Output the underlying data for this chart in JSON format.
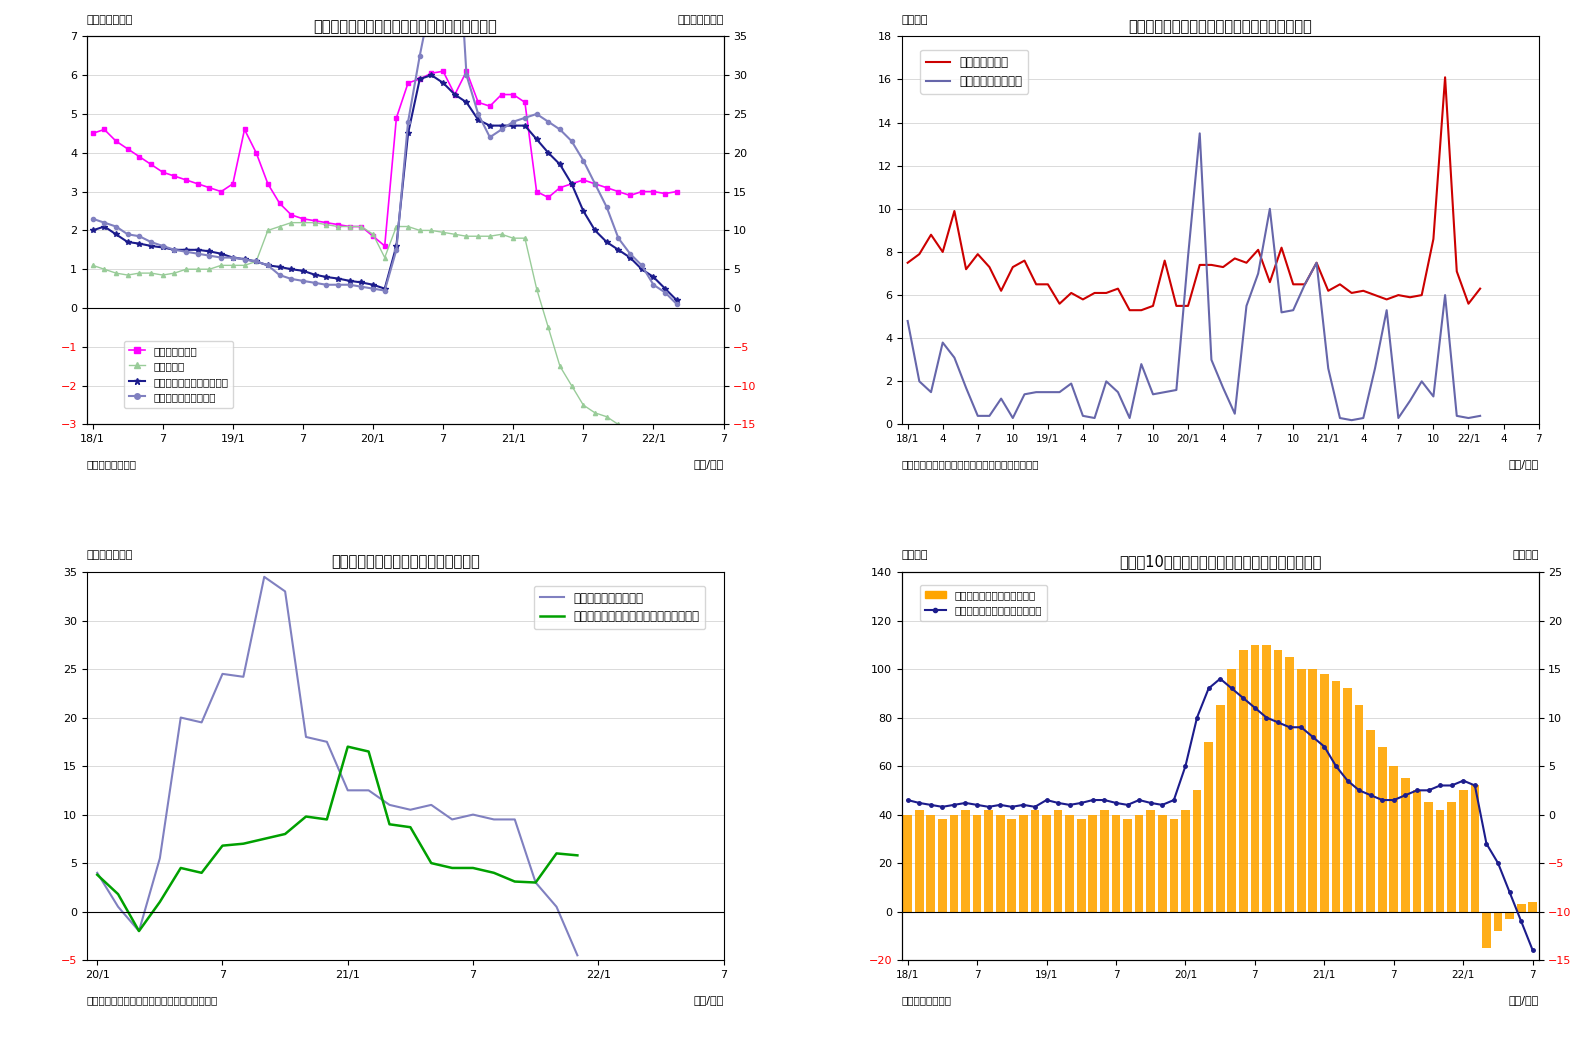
{
  "fig7": {
    "title": "（図表７）　マネタリーベースと内訳（平残）",
    "ylabel_left": "（前年比、％）",
    "ylabel_right": "（前年比、％）",
    "source": "（資料）日本銀行",
    "xlabel": "（年/月）",
    "ylim_left": [
      -3,
      7
    ],
    "ylim_right": [
      -15,
      35
    ],
    "yticks_left": [
      -3,
      -2,
      -1,
      0,
      1,
      2,
      3,
      4,
      5,
      6,
      7
    ],
    "yticks_right": [
      -15,
      -10,
      -5,
      0,
      5,
      10,
      15,
      20,
      25,
      30,
      35
    ],
    "xtick_labels": [
      "18/1",
      "7",
      "19/1",
      "7",
      "20/1",
      "7",
      "21/1",
      "7",
      "22/1",
      "7"
    ],
    "xtick_pos": [
      0,
      6,
      12,
      18,
      24,
      30,
      36,
      42,
      48,
      54
    ],
    "legend_labels": [
      "日銀券発行残高",
      "貨幣流通高",
      "マネタリーベース（右軸）",
      "日銀当座預金（右軸）"
    ],
    "series": {
      "nikkei_bills": [
        4.5,
        4.6,
        4.3,
        4.1,
        3.9,
        3.7,
        3.5,
        3.4,
        3.3,
        3.2,
        3.1,
        3.0,
        3.2,
        4.6,
        4.0,
        3.2,
        2.7,
        2.4,
        2.3,
        2.25,
        2.2,
        2.15,
        2.1,
        2.1,
        1.85,
        1.6,
        4.9,
        5.8,
        5.9,
        6.05,
        6.1,
        5.5,
        6.1,
        5.3,
        5.2,
        5.5,
        5.5,
        5.3,
        3.0,
        2.85,
        3.1,
        3.2,
        3.3,
        3.2,
        3.1,
        3.0,
        2.9,
        3.0,
        3.0,
        2.95,
        3.0
      ],
      "currency": [
        1.1,
        1.0,
        0.9,
        0.85,
        0.9,
        0.9,
        0.85,
        0.9,
        1.0,
        1.0,
        1.0,
        1.1,
        1.1,
        1.1,
        1.2,
        2.0,
        2.1,
        2.2,
        2.2,
        2.2,
        2.15,
        2.1,
        2.1,
        2.1,
        1.9,
        1.3,
        2.1,
        2.1,
        2.0,
        2.0,
        1.95,
        1.9,
        1.85,
        1.85,
        1.85,
        1.9,
        1.8,
        1.8,
        0.5,
        -0.5,
        -1.5,
        -2.0,
        -2.5,
        -2.7,
        -2.8,
        -3.0,
        -3.1,
        -3.15,
        -3.2,
        -3.2,
        -3.2
      ],
      "monetary_base_right": [
        10,
        10.5,
        9.5,
        8.5,
        8.3,
        8.0,
        7.8,
        7.5,
        7.5,
        7.5,
        7.3,
        7.0,
        6.5,
        6.3,
        6.0,
        5.5,
        5.3,
        5.0,
        4.8,
        4.3,
        4.0,
        3.8,
        3.5,
        3.3,
        3.0,
        2.5,
        8.0,
        22.5,
        29.5,
        30.0,
        29.0,
        27.5,
        26.5,
        24.25,
        23.5,
        23.5,
        23.5,
        23.5,
        21.75,
        20.0,
        18.5,
        16.0,
        12.5,
        10.0,
        8.5,
        7.5,
        6.5,
        5.0,
        4.0,
        2.5,
        1.0
      ],
      "boj_deposits_right": [
        11.5,
        11.0,
        10.5,
        9.5,
        9.25,
        8.5,
        8.0,
        7.5,
        7.25,
        7.0,
        6.75,
        6.5,
        6.5,
        6.25,
        6.0,
        5.5,
        4.25,
        3.75,
        3.5,
        3.25,
        3.0,
        3.0,
        3.0,
        2.75,
        2.5,
        2.25,
        7.5,
        24.0,
        32.5,
        40.0,
        47.5,
        55.0,
        30.0,
        25.0,
        22.0,
        23.0,
        24.0,
        24.5,
        25.0,
        24.0,
        23.0,
        21.5,
        19.0,
        16.0,
        13.0,
        9.0,
        7.0,
        5.5,
        3.0,
        2.0,
        0.5
      ]
    }
  },
  "fig8": {
    "title": "（図表８）日銀の国債買入れ額（月次フロー）",
    "ylabel_left": "（兆円）",
    "source": "（資料）日銀データよりニッセイ基礎研究所作成",
    "xlabel": "（年/月）",
    "ylim": [
      0,
      18
    ],
    "yticks": [
      0,
      2,
      4,
      6,
      8,
      10,
      12,
      14,
      16,
      18
    ],
    "xtick_labels": [
      "18/1",
      "4",
      "7",
      "10",
      "19/1",
      "4",
      "7",
      "10",
      "20/1",
      "4",
      "7",
      "10",
      "21/1",
      "4",
      "7",
      "10",
      "22/1",
      "4",
      "7"
    ],
    "xtick_pos": [
      0,
      3,
      6,
      9,
      12,
      15,
      18,
      21,
      24,
      27,
      30,
      33,
      36,
      39,
      42,
      45,
      48,
      51,
      54
    ],
    "legend_labels": [
      "長期国債買入額",
      "国庫短期証券買入額"
    ],
    "series": {
      "long_term": [
        7.5,
        7.9,
        8.8,
        8.0,
        9.9,
        7.2,
        7.9,
        7.3,
        6.2,
        7.3,
        7.6,
        6.5,
        6.5,
        5.6,
        6.1,
        5.8,
        6.1,
        6.1,
        6.3,
        5.3,
        5.3,
        5.5,
        7.6,
        5.5,
        5.5,
        7.4,
        7.4,
        7.3,
        7.7,
        7.5,
        8.1,
        6.6,
        8.2,
        6.5,
        6.5,
        7.5,
        6.2,
        6.5,
        6.1,
        6.2,
        6.0,
        5.8,
        6.0,
        5.9,
        6.0,
        8.6,
        16.1,
        7.1,
        5.6,
        6.3
      ],
      "short_term": [
        4.8,
        2.0,
        1.5,
        3.8,
        3.1,
        1.7,
        0.4,
        0.4,
        1.2,
        0.3,
        1.4,
        1.5,
        1.5,
        1.5,
        1.9,
        0.4,
        0.3,
        2.0,
        1.5,
        0.3,
        2.8,
        1.4,
        1.5,
        1.6,
        7.8,
        13.5,
        3.0,
        1.7,
        0.5,
        5.5,
        7.0,
        10.0,
        5.2,
        5.3,
        6.5,
        7.5,
        2.6,
        0.3,
        0.2,
        0.3,
        2.6,
        5.3,
        0.3,
        1.1,
        2.0,
        1.3,
        6.0,
        0.4,
        0.3,
        0.4
      ]
    }
  },
  "fig9": {
    "title": "（図表９）日銀当座預金残高の伸び率",
    "ylabel_left": "（前年比：％）",
    "source": "（資料）日本銀行よりニッセイ基礎研究所作成",
    "xlabel": "（年/月）",
    "ylim": [
      -5,
      35
    ],
    "yticks": [
      -5,
      0,
      5,
      10,
      15,
      20,
      25,
      30,
      35
    ],
    "xtick_labels": [
      "20/1",
      "7",
      "21/1",
      "7",
      "22/1",
      "7"
    ],
    "xtick_pos": [
      0,
      6,
      12,
      18,
      24,
      30
    ],
    "legend_labels": [
      "日銀当座預金（末残）",
      "日銀当座預金（除くコロナオペ・末残）"
    ],
    "series": {
      "end_balance": [
        4.0,
        0.5,
        -2.0,
        5.5,
        20.0,
        19.5,
        24.5,
        24.2,
        34.5,
        33.0,
        18.0,
        17.5,
        12.5,
        12.5,
        11.0,
        10.5,
        11.0,
        9.5,
        10.0,
        9.5,
        9.5,
        3.0,
        0.5,
        -4.5
      ],
      "excl_corona": [
        3.8,
        1.8,
        -2.0,
        1.0,
        4.5,
        4.0,
        6.8,
        7.0,
        7.5,
        8.0,
        9.8,
        9.5,
        17.0,
        16.5,
        9.0,
        8.7,
        5.0,
        4.5,
        4.5,
        4.0,
        3.1,
        3.0,
        6.0,
        5.8
      ]
    }
  },
  "fig10": {
    "title": "（図表10）マネタリーベース残高と前月比の推移",
    "ylabel_left": "（兆円）",
    "ylabel_right": "（兆円）",
    "source": "（資料）日本銀行",
    "xlabel": "（年/月）",
    "ylim_left": [
      -20,
      140
    ],
    "ylim_right": [
      -15,
      25
    ],
    "yticks_left": [
      -20,
      0,
      20,
      40,
      60,
      80,
      100,
      120,
      140
    ],
    "yticks_right": [
      -15,
      -10,
      -5,
      0,
      5,
      10,
      15,
      20,
      25
    ],
    "xtick_labels": [
      "18/1",
      "7",
      "19/1",
      "7",
      "20/1",
      "7",
      "21/1",
      "7",
      "22/1",
      "7"
    ],
    "xtick_pos": [
      0,
      6,
      12,
      18,
      24,
      30,
      36,
      42,
      48,
      54
    ],
    "legend_labels": [
      "季節調整済み前月差（右軸）",
      "マネタリーベース末残の前年差"
    ],
    "bars_left": [
      40,
      42,
      40,
      38,
      40,
      42,
      40,
      42,
      40,
      38,
      40,
      42,
      40,
      42,
      40,
      38,
      40,
      42,
      40,
      38,
      40,
      42,
      40,
      38,
      42,
      50,
      70,
      85,
      100,
      108,
      110,
      110,
      108,
      105,
      100,
      100,
      98,
      95,
      92,
      85,
      75,
      68,
      60,
      55,
      50,
      45,
      42,
      45,
      50,
      52,
      -15,
      -8,
      -3,
      3,
      4
    ],
    "line_right": [
      1.5,
      1.2,
      1.0,
      0.8,
      1.0,
      1.2,
      1.0,
      0.8,
      1.0,
      0.8,
      1.0,
      0.8,
      1.5,
      1.2,
      1.0,
      1.2,
      1.5,
      1.5,
      1.2,
      1.0,
      1.5,
      1.2,
      1.0,
      1.5,
      5.0,
      10.0,
      13.0,
      14.0,
      13.0,
      12.0,
      11.0,
      10.0,
      9.5,
      9.0,
      9.0,
      8.0,
      7.0,
      5.0,
      3.5,
      2.5,
      2.0,
      1.5,
      1.5,
      2.0,
      2.5,
      2.5,
      3.0,
      3.0,
      3.5,
      3.0,
      -3.0,
      -5.0,
      -8.0,
      -11.0,
      -14.0
    ]
  }
}
